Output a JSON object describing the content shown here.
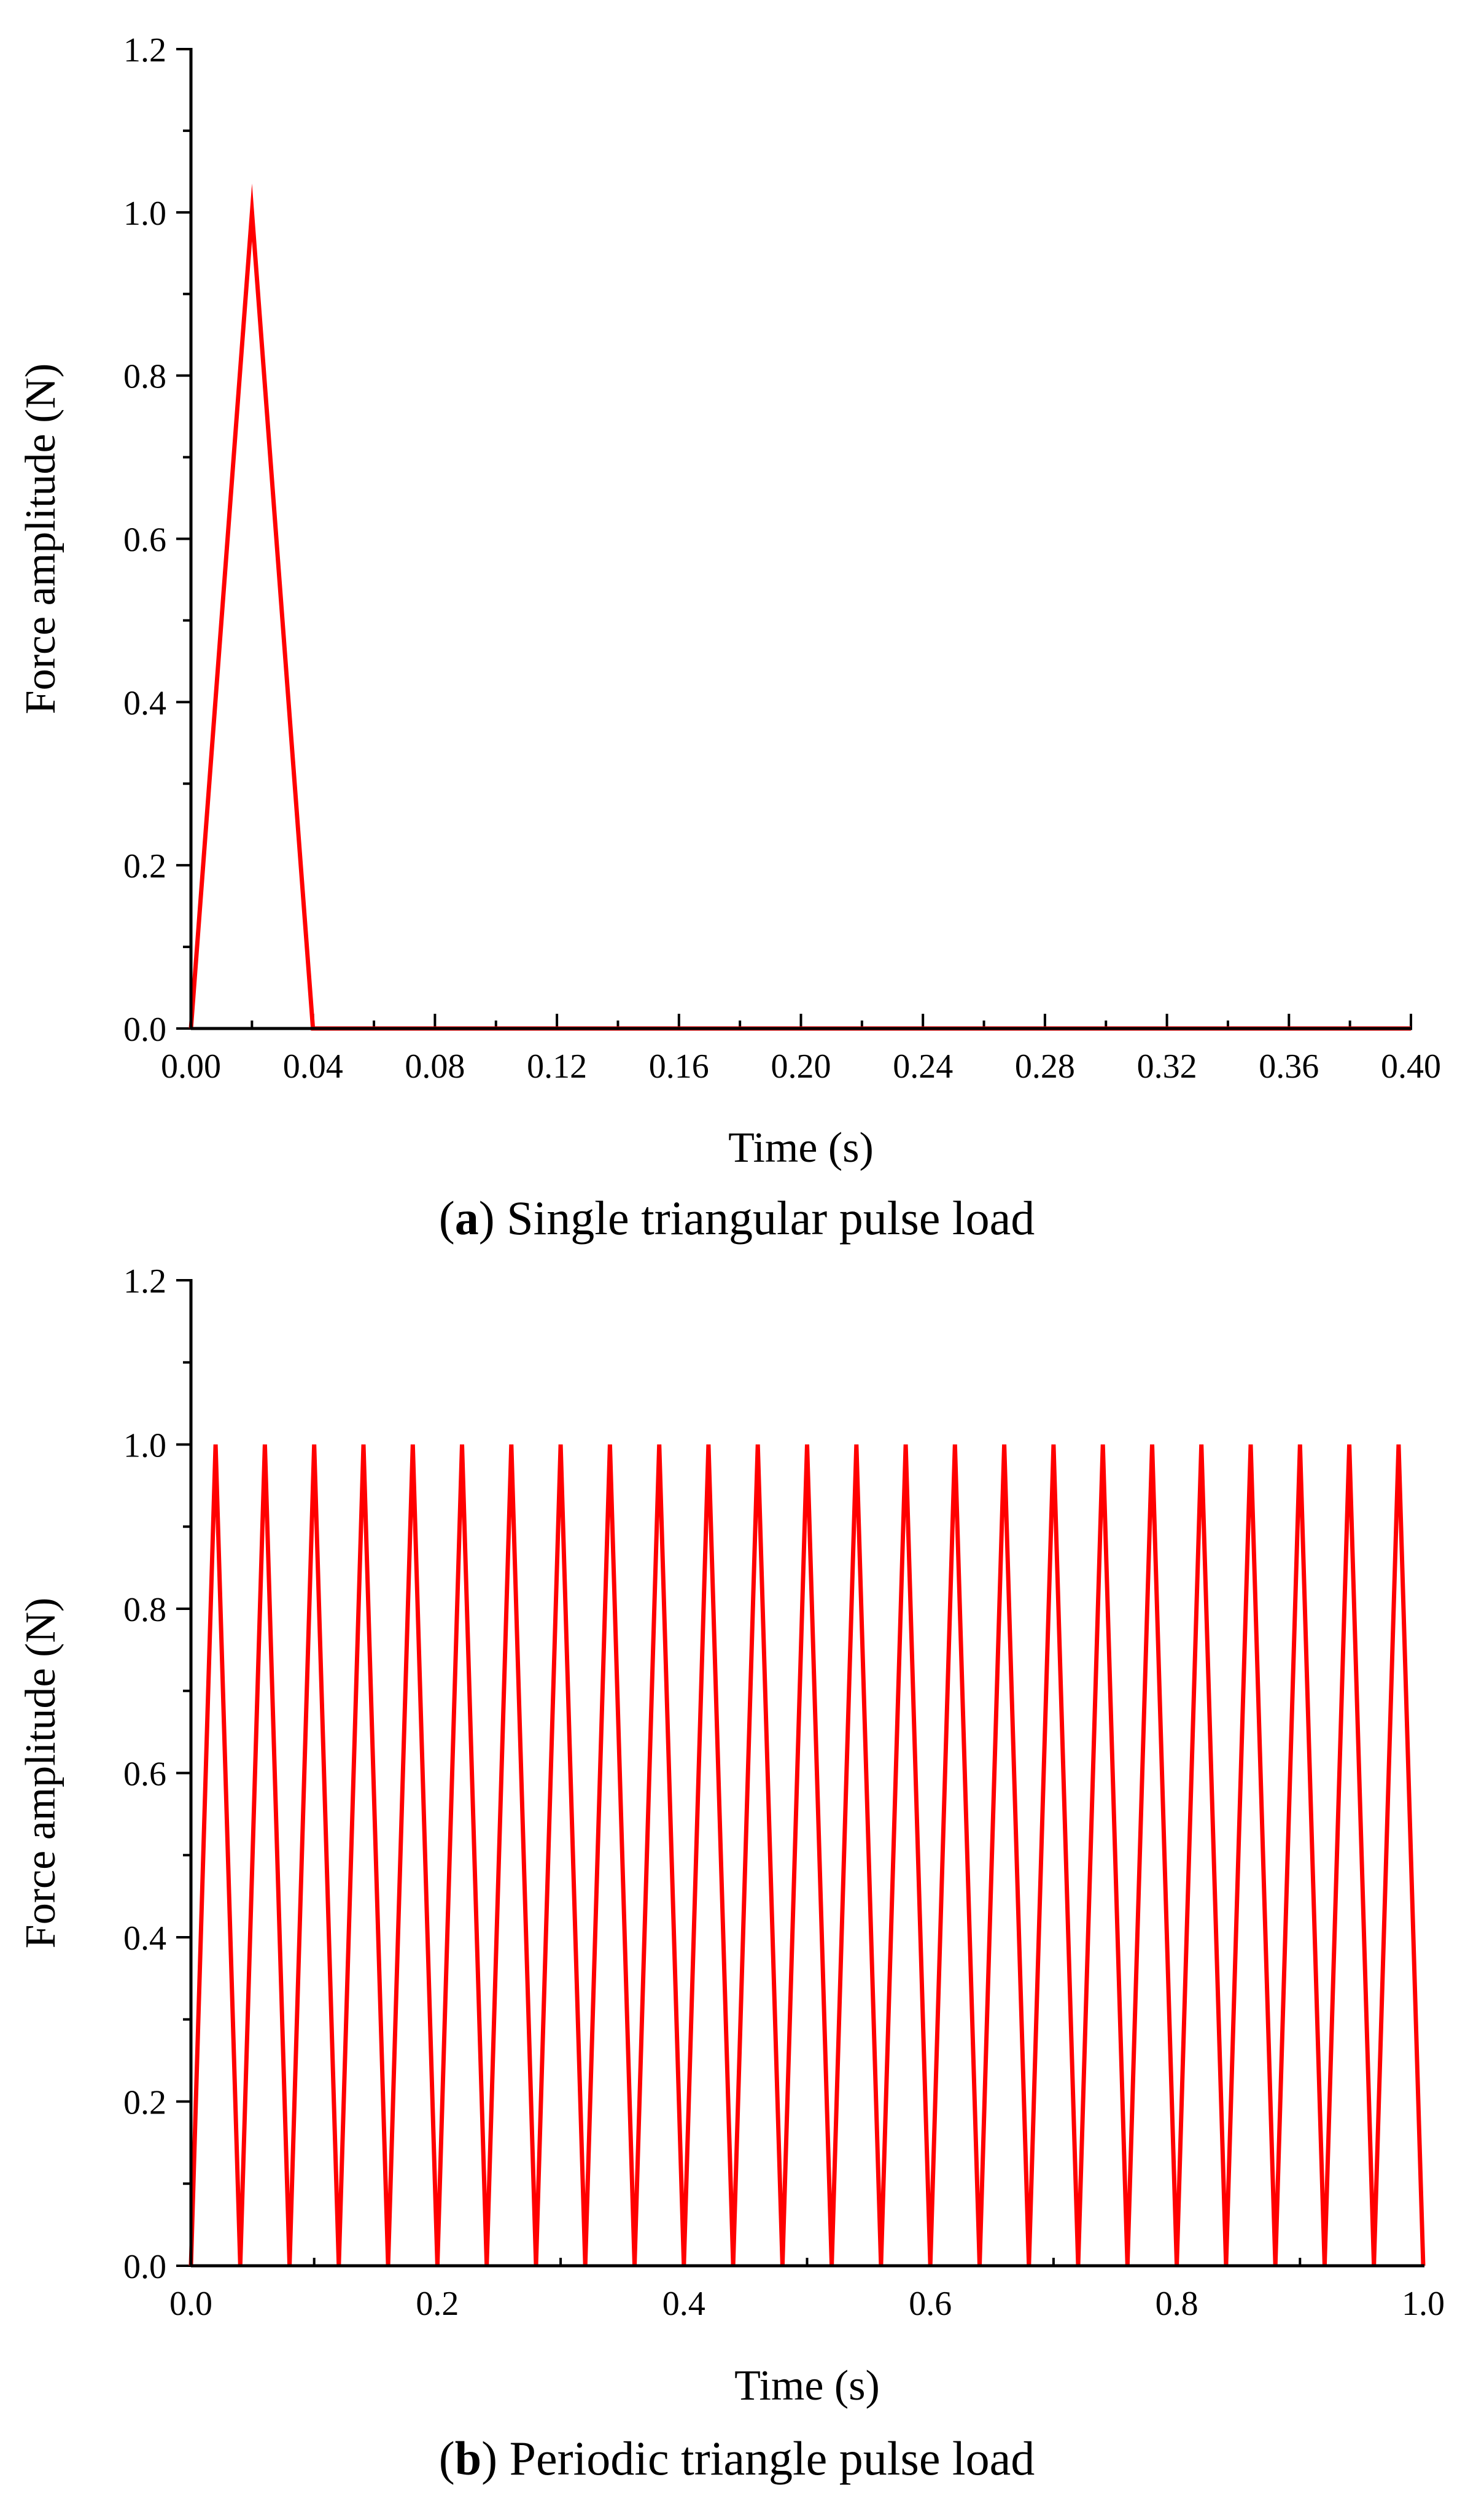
{
  "chart_data": [
    {
      "type": "line",
      "title": "Single triangular pulse load",
      "caption_letter": "a",
      "xlabel": "Time (s)",
      "ylabel": "Force amplitude (N)",
      "xlim": [
        0,
        0.4
      ],
      "ylim": [
        0,
        1.2
      ],
      "x_ticks": [
        "0.00",
        "0.04",
        "0.08",
        "0.12",
        "0.16",
        "0.20",
        "0.24",
        "0.28",
        "0.32",
        "0.36",
        "0.40"
      ],
      "y_ticks": [
        "0.0",
        "0.2",
        "0.4",
        "0.6",
        "0.8",
        "1.0",
        "1.2"
      ],
      "series": [
        {
          "name": "Single triangular pulse load",
          "color": "#ff0000",
          "x": [
            0,
            0.02,
            0.04,
            0.4
          ],
          "y": [
            0,
            1.0,
            0,
            0
          ]
        }
      ]
    },
    {
      "type": "line",
      "title": "Periodic triangle pulse load",
      "caption_letter": "b",
      "xlabel": "Time (s)",
      "ylabel": "Force amplitude (N)",
      "xlim": [
        0,
        1.0
      ],
      "ylim": [
        0,
        1.2
      ],
      "x_ticks": [
        "0.0",
        "0.2",
        "0.4",
        "0.6",
        "0.8",
        "1.0"
      ],
      "y_ticks": [
        "0.0",
        "0.2",
        "0.4",
        "0.6",
        "0.8",
        "1.0",
        "1.2"
      ],
      "series": [
        {
          "name": "Periodic triangle pulse load",
          "color": "#ff0000",
          "x": [
            0,
            0.02,
            0.04,
            0.06,
            0.08,
            0.1,
            0.12,
            0.14,
            0.16,
            0.18,
            0.2,
            0.22,
            0.24,
            0.26,
            0.28,
            0.3,
            0.32,
            0.34,
            0.36,
            0.38,
            0.4,
            0.42,
            0.44,
            0.46,
            0.48,
            0.5,
            0.52,
            0.54,
            0.56,
            0.58,
            0.6,
            0.62,
            0.64,
            0.66,
            0.68,
            0.7,
            0.72,
            0.74,
            0.76,
            0.78,
            0.8,
            0.82,
            0.84,
            0.86,
            0.88,
            0.9,
            0.92,
            0.94,
            0.96,
            0.98,
            1.0
          ],
          "y": [
            0,
            1,
            0,
            1,
            0,
            1,
            0,
            1,
            0,
            1,
            0,
            1,
            0,
            1,
            0,
            1,
            0,
            1,
            0,
            1,
            0,
            1,
            0,
            1,
            0,
            1,
            0,
            1,
            0,
            1,
            0,
            1,
            0,
            1,
            0,
            1,
            0,
            1,
            0,
            1,
            0,
            1,
            0,
            1,
            0,
            1,
            0,
            1,
            0,
            1,
            0
          ]
        }
      ]
    }
  ]
}
